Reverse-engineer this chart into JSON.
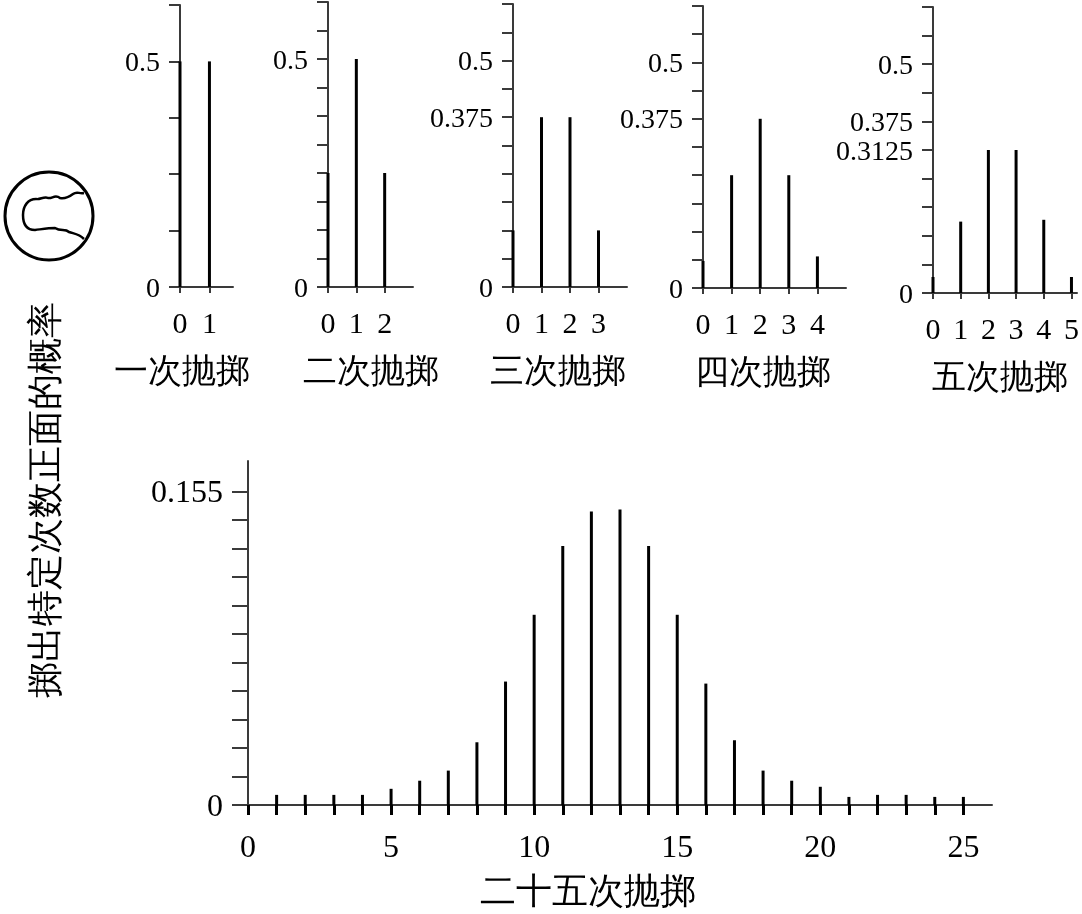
{
  "chart_data": [
    {
      "type": "bar",
      "xlabel": "一次抛掷",
      "x": [
        0,
        1
      ],
      "values": [
        0.5,
        0.5
      ],
      "color": "#000000",
      "xlim": [
        0,
        1.8
      ],
      "xticks": [
        0,
        1
      ],
      "ylim": [
        0,
        0.625
      ],
      "yticks": [
        0,
        {
          "value": 0.125,
          "label": null
        },
        {
          "value": 0.25,
          "label": null
        },
        {
          "value": 0.375,
          "label": null
        },
        0.5,
        {
          "value": 0.625,
          "label": null
        }
      ]
    },
    {
      "type": "bar",
      "xlabel": "二次抛掷",
      "x": [
        0,
        1,
        2
      ],
      "values": [
        0.25,
        0.5,
        0.25
      ],
      "color": "#000000",
      "xlim": [
        0,
        3
      ],
      "xticks": [
        0,
        1,
        2
      ],
      "ylim": [
        0,
        0.625
      ],
      "yticks": [
        0,
        {
          "value": 0.0625,
          "label": null
        },
        {
          "value": 0.125,
          "label": null
        },
        {
          "value": 0.1875,
          "label": null
        },
        {
          "value": 0.25,
          "label": null
        },
        {
          "value": 0.3125,
          "label": null
        },
        {
          "value": 0.375,
          "label": null
        },
        {
          "value": 0.4375,
          "label": null
        },
        0.5,
        {
          "value": 0.5625,
          "label": null
        },
        {
          "value": 0.625,
          "label": null
        }
      ]
    },
    {
      "type": "bar",
      "xlabel": "三次抛掷",
      "x": [
        0,
        1,
        2,
        3
      ],
      "values": [
        0.125,
        0.375,
        0.375,
        0.125
      ],
      "color": "#000000",
      "xlim": [
        0,
        4
      ],
      "xticks": [
        0,
        1,
        2,
        3
      ],
      "ylim": [
        0,
        0.625
      ],
      "yticks": [
        0,
        {
          "value": 0.0625,
          "label": null
        },
        {
          "value": 0.125,
          "label": null
        },
        {
          "value": 0.1875,
          "label": null
        },
        {
          "value": 0.25,
          "label": null
        },
        {
          "value": 0.3125,
          "label": null
        },
        0.375,
        {
          "value": 0.4375,
          "label": null
        },
        0.5,
        {
          "value": 0.5625,
          "label": null
        },
        {
          "value": 0.625,
          "label": null
        }
      ]
    },
    {
      "type": "bar",
      "xlabel": "四次抛掷",
      "x": [
        0,
        1,
        2,
        3,
        4
      ],
      "values": [
        0.06,
        0.25,
        0.375,
        0.25,
        0.07
      ],
      "color": "#000000",
      "xlim": [
        0,
        5
      ],
      "xticks": [
        0,
        1,
        2,
        3,
        4
      ],
      "ylim": [
        0,
        0.625
      ],
      "yticks": [
        0,
        {
          "value": 0.0625,
          "label": null
        },
        {
          "value": 0.125,
          "label": null
        },
        {
          "value": 0.1875,
          "label": null
        },
        {
          "value": 0.25,
          "label": null
        },
        {
          "value": 0.3125,
          "label": null
        },
        0.375,
        {
          "value": 0.4375,
          "label": null
        },
        0.5,
        {
          "value": 0.5625,
          "label": null
        },
        {
          "value": 0.625,
          "label": null
        }
      ]
    },
    {
      "type": "bar",
      "xlabel": "五次抛掷",
      "x": [
        0,
        1,
        2,
        3,
        4,
        5
      ],
      "values": [
        0.035,
        0.156,
        0.3125,
        0.3125,
        0.16,
        0.035
      ],
      "color": "#000000",
      "xlim": [
        0,
        5.2
      ],
      "xticks": [
        0,
        1,
        2,
        3,
        4,
        5
      ],
      "ylim": [
        0,
        0.625
      ],
      "yticks": [
        0,
        {
          "value": 0.0625,
          "label": null
        },
        {
          "value": 0.125,
          "label": null
        },
        {
          "value": 0.1875,
          "label": null
        },
        {
          "value": 0.25,
          "label": null
        },
        0.3125,
        0.375,
        {
          "value": 0.4375,
          "label": null
        },
        0.5,
        {
          "value": 0.5625,
          "label": null
        },
        {
          "value": 0.625,
          "label": null
        }
      ]
    },
    {
      "type": "bar",
      "xlabel": "二十五次抛掷",
      "ylabel": "掷出特定次数正面的概率",
      "x": [
        1,
        2,
        3,
        4,
        5,
        6,
        7,
        8,
        9,
        10,
        11,
        12,
        13,
        14,
        15,
        16,
        17,
        18,
        19,
        20,
        21,
        22,
        23,
        24,
        25
      ],
      "values": [
        0.005,
        0.005,
        0.005,
        0.005,
        0.008,
        0.012,
        0.017,
        0.031,
        0.061,
        0.094,
        0.128,
        0.145,
        0.146,
        0.128,
        0.094,
        0.06,
        0.032,
        0.017,
        0.012,
        0.009,
        0.004,
        0.005,
        0.005,
        0.004,
        0.004
      ],
      "color": "#000000",
      "xlim": [
        0,
        26
      ],
      "xticks": [
        0,
        {
          "value": 1,
          "label": null
        },
        {
          "value": 2,
          "label": null
        },
        {
          "value": 3,
          "label": null
        },
        {
          "value": 4,
          "label": null
        },
        5,
        {
          "value": 6,
          "label": null
        },
        {
          "value": 7,
          "label": null
        },
        {
          "value": 8,
          "label": null
        },
        {
          "value": 9,
          "label": null
        },
        10,
        {
          "value": 11,
          "label": null
        },
        {
          "value": 12,
          "label": null
        },
        {
          "value": 13,
          "label": null
        },
        {
          "value": 14,
          "label": null
        },
        15,
        {
          "value": 16,
          "label": null
        },
        {
          "value": 17,
          "label": null
        },
        {
          "value": 18,
          "label": null
        },
        {
          "value": 19,
          "label": null
        },
        20,
        {
          "value": 21,
          "label": null
        },
        {
          "value": 22,
          "label": null
        },
        {
          "value": 23,
          "label": null
        },
        {
          "value": 24,
          "label": null
        },
        25
      ],
      "ylim": [
        0,
        0.17
      ],
      "yticks": [
        0,
        {
          "value": 0.0141,
          "label": null
        },
        {
          "value": 0.0282,
          "label": null
        },
        {
          "value": 0.0423,
          "label": null
        },
        {
          "value": 0.0564,
          "label": null
        },
        {
          "value": 0.0705,
          "label": null
        },
        {
          "value": 0.0845,
          "label": null
        },
        {
          "value": 0.0986,
          "label": null
        },
        {
          "value": 0.1127,
          "label": null
        },
        {
          "value": 0.1268,
          "label": null
        },
        {
          "value": 0.1409,
          "label": null
        },
        0.155
      ]
    }
  ]
}
